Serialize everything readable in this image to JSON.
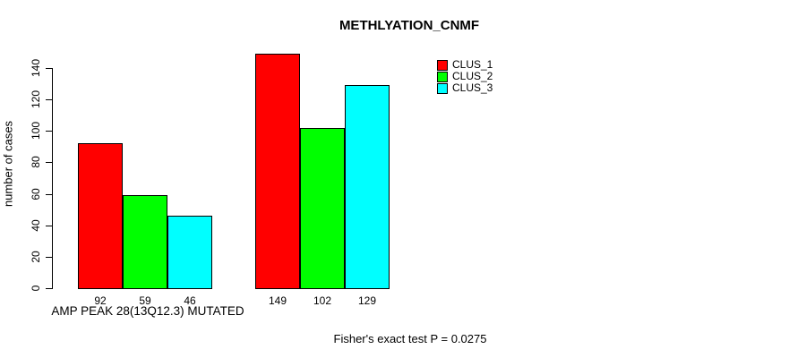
{
  "title": "METHLYATION_CNMF",
  "footer": "Fisher's exact test P = 0.0275",
  "chart_data": {
    "type": "bar",
    "grouped": true,
    "title": "METHLYATION_CNMF",
    "xlabel": "AMP PEAK 28(13Q12.3) MUTATED",
    "ylabel": "number of cases",
    "categories": [
      "AMP PEAK 28(13Q12.3) MUTATED",
      ""
    ],
    "series": [
      {
        "name": "CLUS_1",
        "color": "#ff0000",
        "values": [
          92,
          149
        ]
      },
      {
        "name": "CLUS_2",
        "color": "#00ff00",
        "values": [
          59,
          102
        ]
      },
      {
        "name": "CLUS_3",
        "color": "#00ffff",
        "values": [
          46,
          129
        ]
      }
    ],
    "bar_value_labels": [
      [
        92,
        59,
        46
      ],
      [
        149,
        102,
        129
      ]
    ],
    "yticks": [
      0,
      20,
      40,
      60,
      80,
      100,
      120,
      140
    ],
    "ylim": [
      0,
      140
    ],
    "grid": false,
    "legend_position": "top-right",
    "annotation": "Fisher's exact test P = 0.0275"
  },
  "legend": {
    "items": [
      {
        "label": "CLUS_1",
        "color": "#ff0000"
      },
      {
        "label": "CLUS_2",
        "color": "#00ff00"
      },
      {
        "label": "CLUS_3",
        "color": "#00ffff"
      }
    ]
  }
}
